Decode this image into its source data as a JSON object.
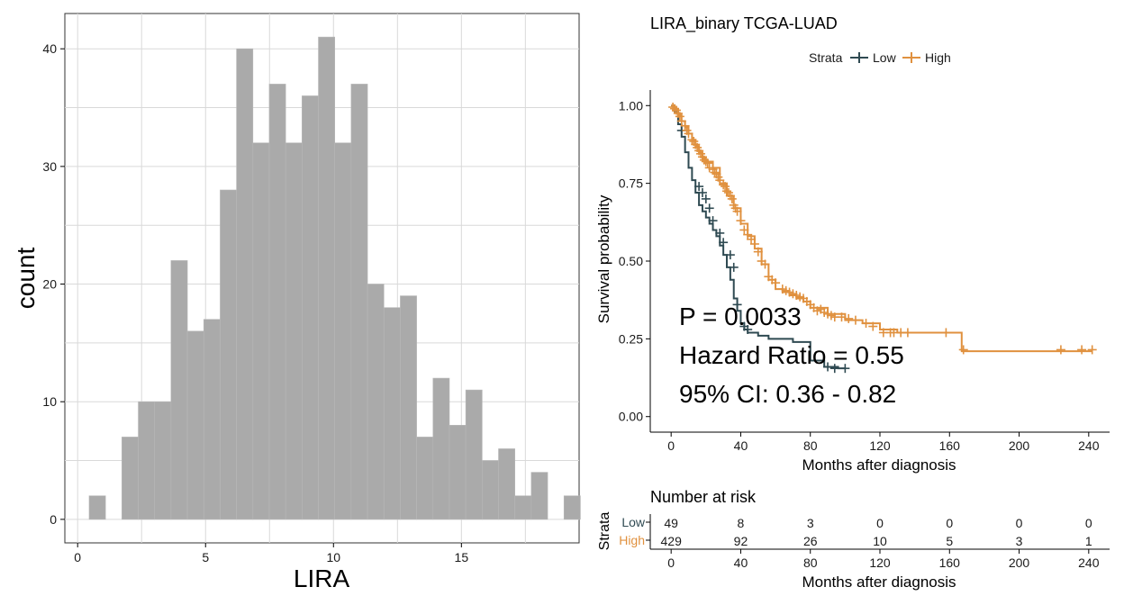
{
  "chart_data": [
    {
      "type": "bar",
      "title": "",
      "xlabel": "LIRA",
      "ylabel": "count",
      "xlim": [
        -0.5,
        19.6
      ],
      "ylim": [
        -2,
        43
      ],
      "xticks": [
        0,
        5,
        10,
        15
      ],
      "yticks": [
        0,
        10,
        20,
        30,
        40
      ],
      "grid": true,
      "bin_width": 0.64,
      "bin_start": 0.45,
      "values": [
        2,
        0,
        7,
        10,
        10,
        22,
        16,
        17,
        28,
        40,
        32,
        37,
        32,
        36,
        41,
        32,
        37,
        20,
        18,
        19,
        7,
        12,
        8,
        11,
        5,
        6,
        2,
        4,
        0,
        2
      ]
    },
    {
      "type": "line",
      "title": "LIRA_binary TCGA-LUAD",
      "xlabel": "Months after diagnosis",
      "ylabel": "Survival probability",
      "xlim": [
        -12,
        252
      ],
      "ylim": [
        -0.05,
        1.05
      ],
      "xticks": [
        0,
        40,
        80,
        120,
        160,
        200,
        240
      ],
      "yticks": [
        0.0,
        0.25,
        0.5,
        0.75,
        1.0
      ],
      "ytick_labels": [
        "0.00",
        "0.25",
        "0.50",
        "0.75",
        "1.00"
      ],
      "legend": {
        "title": "Strata",
        "position": "top"
      },
      "annotations": [
        "P = 0.0033",
        "Hazard Ratio = 0.55",
        "95% CI: 0.36 - 0.82"
      ],
      "series": [
        {
          "name": "Low",
          "color": "#2f4a52",
          "x": [
            0,
            2,
            4,
            6,
            8,
            10,
            12,
            14,
            16,
            18,
            20,
            22,
            24,
            26,
            28,
            30,
            32,
            34,
            36,
            38,
            40,
            42,
            44,
            50,
            56,
            70,
            80,
            88,
            96,
            100
          ],
          "y": [
            1.0,
            0.98,
            0.94,
            0.9,
            0.85,
            0.8,
            0.76,
            0.72,
            0.68,
            0.66,
            0.64,
            0.62,
            0.6,
            0.58,
            0.55,
            0.52,
            0.48,
            0.44,
            0.38,
            0.34,
            0.3,
            0.28,
            0.27,
            0.26,
            0.25,
            0.24,
            0.18,
            0.16,
            0.155,
            0.155
          ],
          "censor": [
            [
              6,
              0.92
            ],
            [
              16,
              0.74
            ],
            [
              18,
              0.72
            ],
            [
              20,
              0.7
            ],
            [
              22,
              0.67
            ],
            [
              24,
              0.63
            ],
            [
              28,
              0.59
            ],
            [
              30,
              0.56
            ],
            [
              34,
              0.52
            ],
            [
              36,
              0.48
            ],
            [
              38,
              0.36
            ],
            [
              42,
              0.29
            ],
            [
              44,
              0.28
            ],
            [
              90,
              0.16
            ],
            [
              94,
              0.155
            ],
            [
              100,
              0.155
            ]
          ]
        },
        {
          "name": "High",
          "color": "#e0913f",
          "x": [
            0,
            2,
            4,
            6,
            8,
            10,
            12,
            14,
            16,
            18,
            20,
            24,
            28,
            32,
            36,
            40,
            44,
            48,
            52,
            56,
            60,
            64,
            68,
            72,
            76,
            80,
            90,
            100,
            110,
            120,
            130,
            140,
            150,
            160,
            166,
            167,
            200,
            220,
            242
          ],
          "y": [
            1.0,
            0.99,
            0.97,
            0.95,
            0.93,
            0.91,
            0.89,
            0.87,
            0.85,
            0.83,
            0.82,
            0.8,
            0.75,
            0.71,
            0.67,
            0.62,
            0.58,
            0.54,
            0.49,
            0.44,
            0.41,
            0.4,
            0.39,
            0.38,
            0.37,
            0.35,
            0.33,
            0.31,
            0.3,
            0.28,
            0.27,
            0.27,
            0.27,
            0.27,
            0.27,
            0.21,
            0.21,
            0.21,
            0.21
          ],
          "censor": [
            [
              1,
              0.995
            ],
            [
              2,
              0.99
            ],
            [
              3,
              0.985
            ],
            [
              4,
              0.975
            ],
            [
              5,
              0.965
            ],
            [
              6,
              0.95
            ],
            [
              8,
              0.935
            ],
            [
              9,
              0.92
            ],
            [
              10,
              0.91
            ],
            [
              12,
              0.89
            ],
            [
              13,
              0.885
            ],
            [
              14,
              0.875
            ],
            [
              15,
              0.865
            ],
            [
              16,
              0.855
            ],
            [
              17,
              0.845
            ],
            [
              18,
              0.835
            ],
            [
              19,
              0.825
            ],
            [
              20,
              0.82
            ],
            [
              21,
              0.815
            ],
            [
              22,
              0.8
            ],
            [
              24,
              0.795
            ],
            [
              25,
              0.785
            ],
            [
              26,
              0.78
            ],
            [
              27,
              0.77
            ],
            [
              28,
              0.76
            ],
            [
              30,
              0.745
            ],
            [
              31,
              0.74
            ],
            [
              32,
              0.725
            ],
            [
              33,
              0.72
            ],
            [
              34,
              0.71
            ],
            [
              35,
              0.7
            ],
            [
              36,
              0.68
            ],
            [
              37,
              0.67
            ],
            [
              38,
              0.66
            ],
            [
              40,
              0.63
            ],
            [
              42,
              0.6
            ],
            [
              44,
              0.585
            ],
            [
              46,
              0.57
            ],
            [
              48,
              0.555
            ],
            [
              50,
              0.53
            ],
            [
              52,
              0.5
            ],
            [
              54,
              0.49
            ],
            [
              56,
              0.45
            ],
            [
              58,
              0.44
            ],
            [
              60,
              0.43
            ],
            [
              64,
              0.41
            ],
            [
              66,
              0.405
            ],
            [
              68,
              0.4
            ],
            [
              70,
              0.395
            ],
            [
              72,
              0.39
            ],
            [
              74,
              0.385
            ],
            [
              76,
              0.38
            ],
            [
              78,
              0.37
            ],
            [
              80,
              0.36
            ],
            [
              82,
              0.35
            ],
            [
              84,
              0.34
            ],
            [
              86,
              0.345
            ],
            [
              88,
              0.335
            ],
            [
              90,
              0.33
            ],
            [
              92,
              0.325
            ],
            [
              94,
              0.32
            ],
            [
              98,
              0.32
            ],
            [
              102,
              0.315
            ],
            [
              106,
              0.31
            ],
            [
              112,
              0.3
            ],
            [
              116,
              0.29
            ],
            [
              122,
              0.27
            ],
            [
              126,
              0.27
            ],
            [
              128,
              0.27
            ],
            [
              132,
              0.27
            ],
            [
              136,
              0.27
            ],
            [
              158,
              0.27
            ],
            [
              168,
              0.215
            ],
            [
              224,
              0.215
            ],
            [
              236,
              0.215
            ],
            [
              242,
              0.215
            ]
          ]
        }
      ]
    },
    {
      "type": "table",
      "title": "Number at risk",
      "xlabel": "Months after diagnosis",
      "ylabel": "Strata",
      "xticks": [
        0,
        40,
        80,
        120,
        160,
        200,
        240
      ],
      "rows": [
        {
          "name": "Low",
          "color": "#2f4a52",
          "values": [
            49,
            8,
            3,
            0,
            0,
            0,
            0
          ]
        },
        {
          "name": "High",
          "color": "#e0913f",
          "values": [
            429,
            92,
            26,
            10,
            5,
            3,
            1
          ]
        }
      ]
    }
  ]
}
